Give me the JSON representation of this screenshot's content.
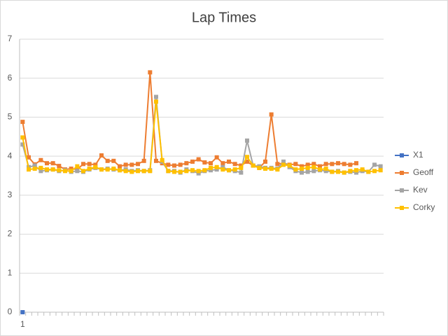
{
  "chart_data": {
    "type": "line",
    "title": "Lap Times",
    "categories": [
      "1",
      null,
      null,
      null,
      null,
      null,
      null,
      null,
      null,
      null,
      null,
      null,
      null,
      null,
      null,
      null,
      null,
      null,
      null,
      null,
      null,
      null,
      null,
      null,
      null,
      null,
      null,
      null,
      null,
      null,
      null,
      null,
      null,
      null,
      null,
      null,
      null,
      null,
      null,
      null,
      null,
      null,
      null,
      null,
      null,
      null,
      null,
      null,
      null,
      null,
      null,
      null,
      null,
      null,
      null,
      null,
      null,
      null,
      null,
      null
    ],
    "series": [
      {
        "name": "X1",
        "color": "#4472c4",
        "values": [
          0,
          null,
          null,
          null,
          null,
          null,
          null,
          null,
          null,
          null,
          null,
          null,
          null,
          null,
          null,
          null,
          null,
          null,
          null,
          null,
          null,
          null,
          null,
          null,
          null,
          null,
          null,
          null,
          null,
          null,
          null,
          null,
          null,
          null,
          null,
          null,
          null,
          null,
          null,
          null,
          null,
          null,
          null,
          null,
          null,
          null,
          null,
          null,
          null,
          null,
          null,
          null,
          null,
          null,
          null,
          null,
          null,
          null,
          null,
          null
        ]
      },
      {
        "name": "Geoff",
        "color": "#ed7d31",
        "values": [
          4.88,
          3.97,
          3.79,
          3.9,
          3.82,
          3.82,
          3.75,
          3.66,
          3.68,
          3.66,
          3.8,
          3.8,
          3.78,
          4.02,
          3.88,
          3.88,
          3.74,
          3.78,
          3.78,
          3.8,
          3.88,
          6.15,
          3.88,
          3.82,
          3.78,
          3.76,
          3.78,
          3.82,
          3.86,
          3.92,
          3.84,
          3.82,
          3.97,
          3.82,
          3.86,
          3.8,
          3.76,
          3.86,
          3.76,
          3.7,
          3.86,
          5.07,
          3.8,
          3.82,
          3.78,
          3.8,
          3.74,
          3.78,
          3.8,
          3.74,
          3.8,
          3.8,
          3.82,
          3.8,
          3.78,
          3.82,
          null,
          null,
          null,
          null
        ]
      },
      {
        "name": "Kev",
        "color": "#a5a5a5",
        "values": [
          4.3,
          3.72,
          3.76,
          3.62,
          3.64,
          3.66,
          3.62,
          3.64,
          3.6,
          3.62,
          3.6,
          3.66,
          3.7,
          3.66,
          3.68,
          3.66,
          3.64,
          3.66,
          3.62,
          3.64,
          3.62,
          3.64,
          5.52,
          3.86,
          3.62,
          3.62,
          3.58,
          3.66,
          3.62,
          3.56,
          3.62,
          3.64,
          3.66,
          3.72,
          3.64,
          3.62,
          3.58,
          4.4,
          3.76,
          3.74,
          3.7,
          3.7,
          3.68,
          3.86,
          3.72,
          3.62,
          3.58,
          3.6,
          3.62,
          3.64,
          3.62,
          3.6,
          3.62,
          3.58,
          3.6,
          3.58,
          3.62,
          3.6,
          3.78,
          3.74
        ]
      },
      {
        "name": "Corky",
        "color": "#ffc000",
        "values": [
          4.48,
          3.66,
          3.68,
          3.7,
          3.66,
          3.66,
          3.64,
          3.62,
          3.62,
          3.74,
          3.62,
          3.68,
          3.72,
          3.66,
          3.66,
          3.68,
          3.64,
          3.62,
          3.6,
          3.62,
          3.62,
          3.62,
          5.4,
          3.9,
          3.62,
          3.6,
          3.6,
          3.62,
          3.64,
          3.62,
          3.64,
          3.7,
          3.72,
          3.66,
          3.64,
          3.66,
          3.7,
          3.98,
          3.76,
          3.7,
          3.68,
          3.68,
          3.66,
          3.78,
          3.76,
          3.66,
          3.68,
          3.7,
          3.72,
          3.66,
          3.68,
          3.6,
          3.6,
          3.58,
          3.62,
          3.64,
          3.66,
          3.6,
          3.62,
          3.64
        ]
      }
    ],
    "ylim": [
      0,
      7
    ],
    "yticks": [
      0,
      1,
      2,
      3,
      4,
      5,
      6,
      7
    ],
    "grid": true,
    "legend": "right"
  }
}
